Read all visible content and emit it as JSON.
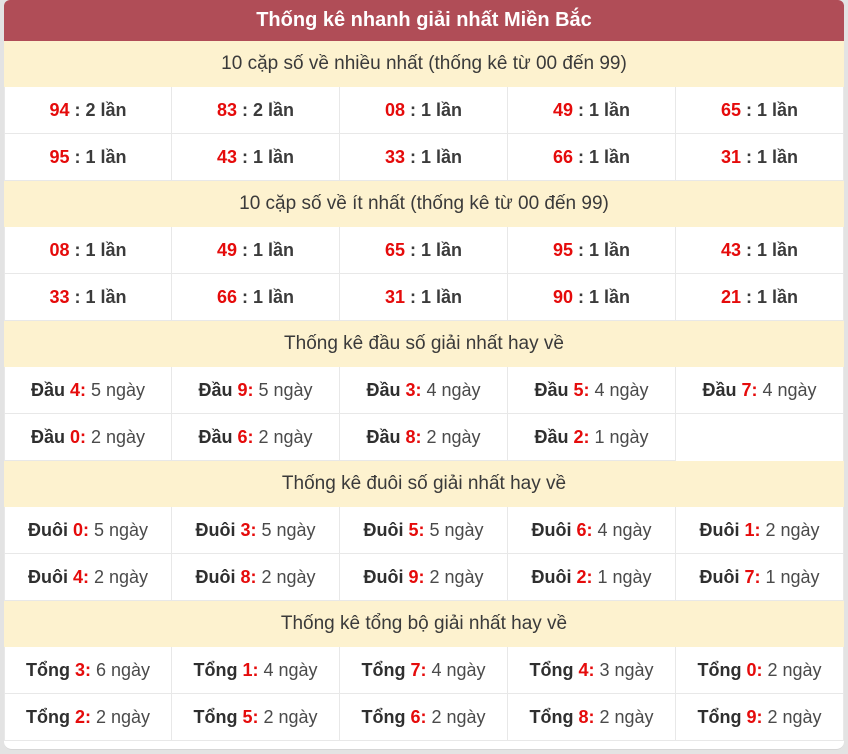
{
  "title": "Thống kê nhanh giải nhất Miền Bắc",
  "colors": {
    "header_bg": "#b04d57",
    "section_bg": "#fdf2cf",
    "accent_red": "#e50b0b"
  },
  "sections": [
    {
      "heading": "10 cặp số về nhiều nhất (thống kê từ 00 đến 99)",
      "rows": [
        [
          {
            "a": "94",
            "b": ": 2 lần"
          },
          {
            "a": "83",
            "b": ": 2 lần"
          },
          {
            "a": "08",
            "b": ": 1 lần"
          },
          {
            "a": "49",
            "b": ": 1 lần"
          },
          {
            "a": "65",
            "b": ": 1 lần"
          }
        ],
        [
          {
            "a": "95",
            "b": ": 1 lần"
          },
          {
            "a": "43",
            "b": ": 1 lần"
          },
          {
            "a": "33",
            "b": ": 1 lần"
          },
          {
            "a": "66",
            "b": ": 1 lần"
          },
          {
            "a": "31",
            "b": ": 1 lần"
          }
        ]
      ]
    },
    {
      "heading": "10 cặp số về ít nhất (thống kê từ 00 đến 99)",
      "rows": [
        [
          {
            "a": "08",
            "b": ": 1 lần"
          },
          {
            "a": "49",
            "b": ": 1 lần"
          },
          {
            "a": "65",
            "b": ": 1 lần"
          },
          {
            "a": "95",
            "b": ": 1 lần"
          },
          {
            "a": "43",
            "b": ": 1 lần"
          }
        ],
        [
          {
            "a": "33",
            "b": ": 1 lần"
          },
          {
            "a": "66",
            "b": ": 1 lần"
          },
          {
            "a": "31",
            "b": ": 1 lần"
          },
          {
            "a": "90",
            "b": ": 1 lần"
          },
          {
            "a": "21",
            "b": ": 1 lần"
          }
        ]
      ]
    },
    {
      "heading": "Thống kê đầu số giải nhất hay về",
      "rows": [
        [
          {
            "l": "Đầu",
            "a": "4:",
            "b": "5 ngày"
          },
          {
            "l": "Đầu",
            "a": "9:",
            "b": "5 ngày"
          },
          {
            "l": "Đầu",
            "a": "3:",
            "b": "4 ngày"
          },
          {
            "l": "Đầu",
            "a": "5:",
            "b": "4 ngày"
          },
          {
            "l": "Đầu",
            "a": "7:",
            "b": "4 ngày"
          }
        ],
        [
          {
            "l": "Đầu",
            "a": "0:",
            "b": "2 ngày"
          },
          {
            "l": "Đầu",
            "a": "6:",
            "b": "2 ngày"
          },
          {
            "l": "Đầu",
            "a": "8:",
            "b": "2 ngày"
          },
          {
            "l": "Đầu",
            "a": "2:",
            "b": "1 ngày"
          },
          {
            "l": "",
            "a": "",
            "b": ""
          }
        ]
      ]
    },
    {
      "heading": "Thống kê đuôi số giải nhất hay về",
      "rows": [
        [
          {
            "l": "Đuôi",
            "a": "0:",
            "b": "5 ngày"
          },
          {
            "l": "Đuôi",
            "a": "3:",
            "b": "5 ngày"
          },
          {
            "l": "Đuôi",
            "a": "5:",
            "b": "5 ngày"
          },
          {
            "l": "Đuôi",
            "a": "6:",
            "b": "4 ngày"
          },
          {
            "l": "Đuôi",
            "a": "1:",
            "b": "2 ngày"
          }
        ],
        [
          {
            "l": "Đuôi",
            "a": "4:",
            "b": "2 ngày"
          },
          {
            "l": "Đuôi",
            "a": "8:",
            "b": "2 ngày"
          },
          {
            "l": "Đuôi",
            "a": "9:",
            "b": "2 ngày"
          },
          {
            "l": "Đuôi",
            "a": "2:",
            "b": "1 ngày"
          },
          {
            "l": "Đuôi",
            "a": "7:",
            "b": "1 ngày"
          }
        ]
      ]
    },
    {
      "heading": "Thống kê tổng bộ giải nhất hay về",
      "rows": [
        [
          {
            "l": "Tổng",
            "a": "3:",
            "b": "6 ngày"
          },
          {
            "l": "Tổng",
            "a": "1:",
            "b": "4 ngày"
          },
          {
            "l": "Tổng",
            "a": "7:",
            "b": "4 ngày"
          },
          {
            "l": "Tổng",
            "a": "4:",
            "b": "3 ngày"
          },
          {
            "l": "Tổng",
            "a": "0:",
            "b": "2 ngày"
          }
        ],
        [
          {
            "l": "Tổng",
            "a": "2:",
            "b": "2 ngày"
          },
          {
            "l": "Tổng",
            "a": "5:",
            "b": "2 ngày"
          },
          {
            "l": "Tổng",
            "a": "6:",
            "b": "2 ngày"
          },
          {
            "l": "Tổng",
            "a": "8:",
            "b": "2 ngày"
          },
          {
            "l": "Tổng",
            "a": "9:",
            "b": "2 ngày"
          }
        ]
      ]
    }
  ]
}
